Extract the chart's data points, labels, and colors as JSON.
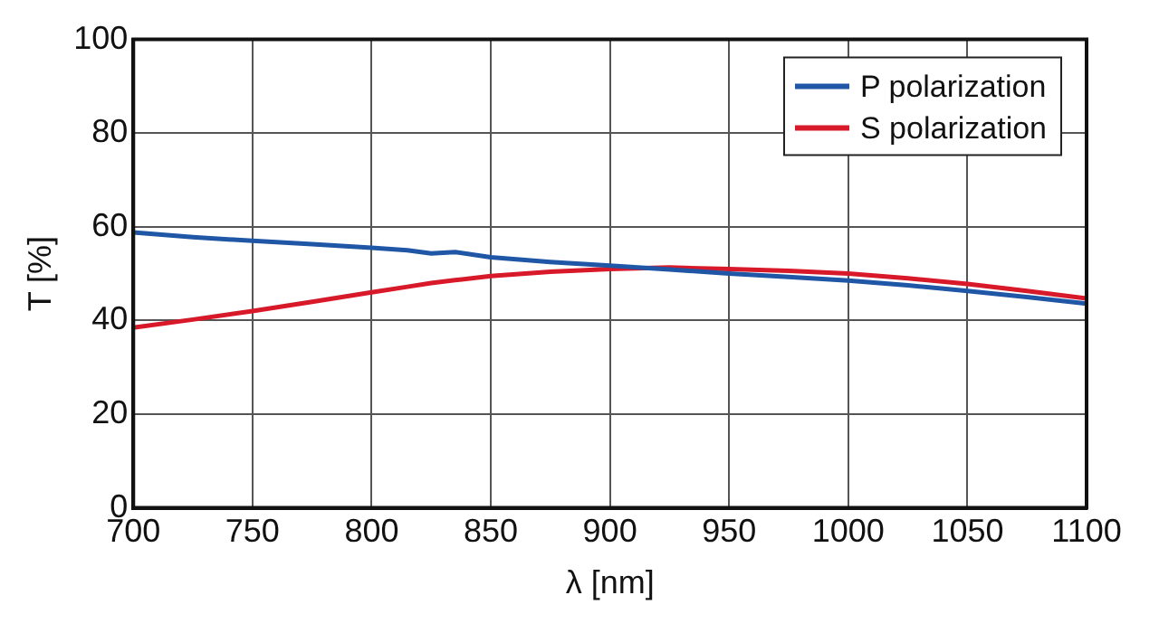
{
  "chart_data": {
    "type": "line",
    "xlabel": "λ [nm]",
    "ylabel": "T [%]",
    "x": [
      700,
      725,
      750,
      775,
      800,
      815,
      825,
      835,
      850,
      875,
      900,
      925,
      950,
      975,
      1000,
      1025,
      1050,
      1075,
      1100
    ],
    "series": [
      {
        "name": "P polarization",
        "color": "#1f56a5",
        "values": [
          58.8,
          57.8,
          57.0,
          56.3,
          55.5,
          55.0,
          54.3,
          54.6,
          53.5,
          52.5,
          51.7,
          50.9,
          50.0,
          49.3,
          48.5,
          47.5,
          46.3,
          45.0,
          43.6
        ]
      },
      {
        "name": "S polarization",
        "color": "#d7192a",
        "values": [
          38.5,
          40.2,
          42.0,
          44.0,
          46.0,
          47.2,
          48.0,
          48.6,
          49.5,
          50.4,
          51.0,
          51.3,
          51.0,
          50.6,
          50.0,
          49.0,
          47.8,
          46.3,
          44.7
        ]
      }
    ],
    "xlim": [
      700,
      1100
    ],
    "xticks": [
      700,
      750,
      800,
      850,
      900,
      950,
      1000,
      1050,
      1100
    ],
    "ylim": [
      0,
      100
    ],
    "yticks": [
      0,
      20,
      40,
      60,
      80,
      100
    ],
    "grid": true,
    "legend": "top right",
    "marker": "none",
    "line_style": "solid"
  }
}
